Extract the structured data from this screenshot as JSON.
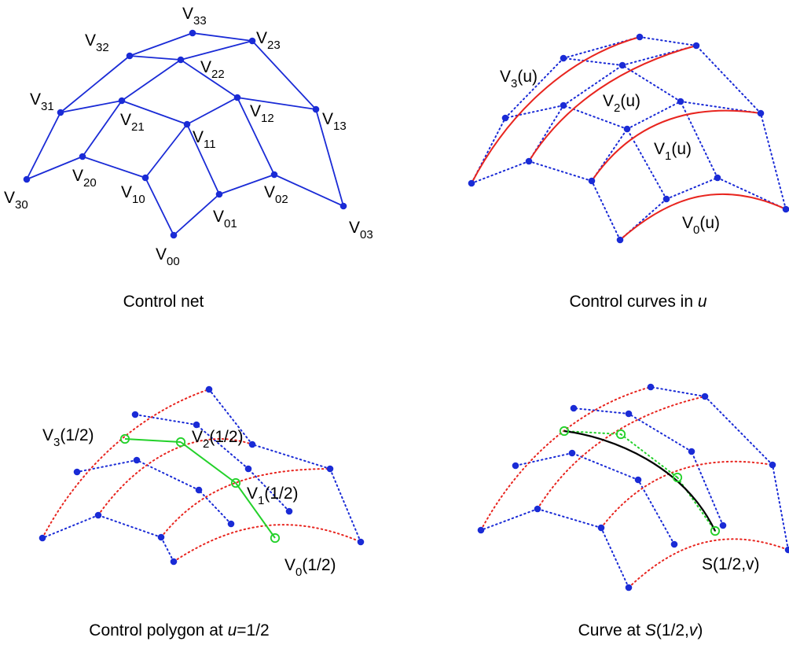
{
  "colors": {
    "net": "#1a2bd6",
    "red": "#e8251f",
    "green": "#23d12a",
    "black": "#000000"
  },
  "panels": {
    "control_net": {
      "caption": "Control net",
      "labels": [
        {
          "base": "V",
          "sub": "00"
        },
        {
          "base": "V",
          "sub": "01"
        },
        {
          "base": "V",
          "sub": "02"
        },
        {
          "base": "V",
          "sub": "03"
        },
        {
          "base": "V",
          "sub": "10"
        },
        {
          "base": "V",
          "sub": "11"
        },
        {
          "base": "V",
          "sub": "12"
        },
        {
          "base": "V",
          "sub": "13"
        },
        {
          "base": "V",
          "sub": "20"
        },
        {
          "base": "V",
          "sub": "21"
        },
        {
          "base": "V",
          "sub": "22"
        },
        {
          "base": "V",
          "sub": "23"
        },
        {
          "base": "V",
          "sub": "30"
        },
        {
          "base": "V",
          "sub": "31"
        },
        {
          "base": "V",
          "sub": "32"
        },
        {
          "base": "V",
          "sub": "33"
        }
      ]
    },
    "control_curves": {
      "caption_text": "Control curves in ",
      "caption_var": "u",
      "labels": [
        {
          "base": "V",
          "sub": "3",
          "rest": "(u)"
        },
        {
          "base": "V",
          "sub": "2",
          "rest": "(u)"
        },
        {
          "base": "V",
          "sub": "1",
          "rest": "(u)"
        },
        {
          "base": "V",
          "sub": "0",
          "rest": "(u)"
        }
      ]
    },
    "control_polygon": {
      "caption_text": "Control polygon at ",
      "caption_var": "u",
      "caption_rest": "=1/2",
      "labels": [
        {
          "base": "V",
          "sub": "3",
          "rest": "(1/2)"
        },
        {
          "base": "V",
          "sub": "2",
          "rest": "(1/2)"
        },
        {
          "base": "V",
          "sub": "1",
          "rest": "(1/2)"
        },
        {
          "base": "V",
          "sub": "0",
          "rest": "(1/2)"
        }
      ]
    },
    "surface_curve": {
      "caption_text": "Curve at ",
      "caption_var": "S",
      "caption_rest": "(1/2,",
      "caption_var2": "v",
      "caption_end": ")",
      "label": "S(1/2,v)"
    }
  }
}
